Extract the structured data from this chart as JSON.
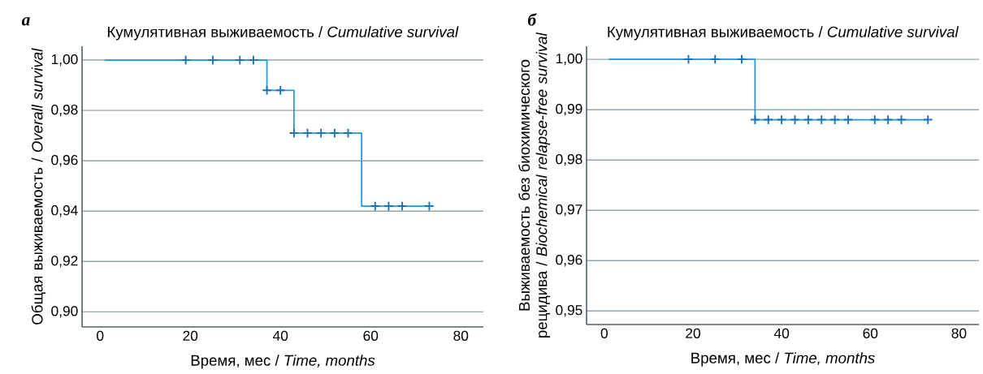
{
  "chart_data": [
    {
      "type": "step",
      "title": "Кумулятивная выживаемость / *Cumulative survival*",
      "xlabel": "Время, мес / *Time, months*",
      "ylabel": "Общая выживаемость / *Overall survival*",
      "annotations": [
        "а"
      ],
      "xlim": [
        -4,
        85
      ],
      "ylim": [
        0.894,
        1.0055
      ],
      "xticks": [
        0,
        20,
        40,
        60,
        80
      ],
      "yticks": [
        {
          "value": 0.9,
          "label": "0,90"
        },
        {
          "value": 0.92,
          "label": "0,92"
        },
        {
          "value": 0.94,
          "label": "0,94"
        },
        {
          "value": 0.96,
          "label": "0,96"
        },
        {
          "value": 0.98,
          "label": "0,98"
        },
        {
          "value": 1.0,
          "label": "1,00"
        }
      ],
      "grid": "y",
      "series": [
        {
          "color": "#1f9ad8",
          "marker": "none",
          "x": [
            1,
            37,
            43,
            58,
            73
          ],
          "values": [
            1.0,
            0.988,
            0.971,
            0.942,
            0.942
          ]
        },
        {
          "type": "scatter",
          "color": "#1a6fb5",
          "marker": "cross",
          "x": [
            19,
            25,
            31,
            34,
            37,
            40,
            43,
            46,
            49,
            52,
            55,
            61,
            64,
            67,
            73
          ],
          "values": [
            1.0,
            1.0,
            1.0,
            1.0,
            0.988,
            0.988,
            0.971,
            0.971,
            0.971,
            0.971,
            0.971,
            0.942,
            0.942,
            0.942,
            0.942
          ]
        }
      ]
    },
    {
      "type": "step",
      "title": "Кумулятивная выживаемость / *Cumulative survival*",
      "xlabel": "Время, мес / *Time, months*",
      "ylabel": "Выживаемость без биохимического рецидива / *Biochemical relapse-free survival*",
      "annotations": [
        "б"
      ],
      "xlim": [
        -4,
        84.5
      ],
      "ylim": [
        0.9473,
        1.0026
      ],
      "xticks": [
        0,
        20,
        40,
        60,
        80
      ],
      "yticks": [
        {
          "value": 0.95,
          "label": "0,95"
        },
        {
          "value": 0.96,
          "label": "0,96"
        },
        {
          "value": 0.97,
          "label": "0,97"
        },
        {
          "value": 0.98,
          "label": "0,98"
        },
        {
          "value": 0.99,
          "label": "0,99"
        },
        {
          "value": 1.0,
          "label": "1,00"
        }
      ],
      "grid": "y",
      "series": [
        {
          "color": "#1f9ad8",
          "marker": "none",
          "x": [
            1,
            34,
            73
          ],
          "values": [
            1.0,
            0.988,
            0.988
          ]
        },
        {
          "type": "scatter",
          "color": "#1a6fb5",
          "marker": "cross",
          "x": [
            19,
            25,
            31,
            34,
            37,
            40,
            43,
            46,
            49,
            52,
            55,
            61,
            64,
            67,
            73
          ],
          "values": [
            1.0,
            1.0,
            1.0,
            0.988,
            0.988,
            0.988,
            0.988,
            0.988,
            0.988,
            0.988,
            0.988,
            0.988,
            0.988,
            0.988,
            0.988
          ]
        }
      ]
    }
  ]
}
